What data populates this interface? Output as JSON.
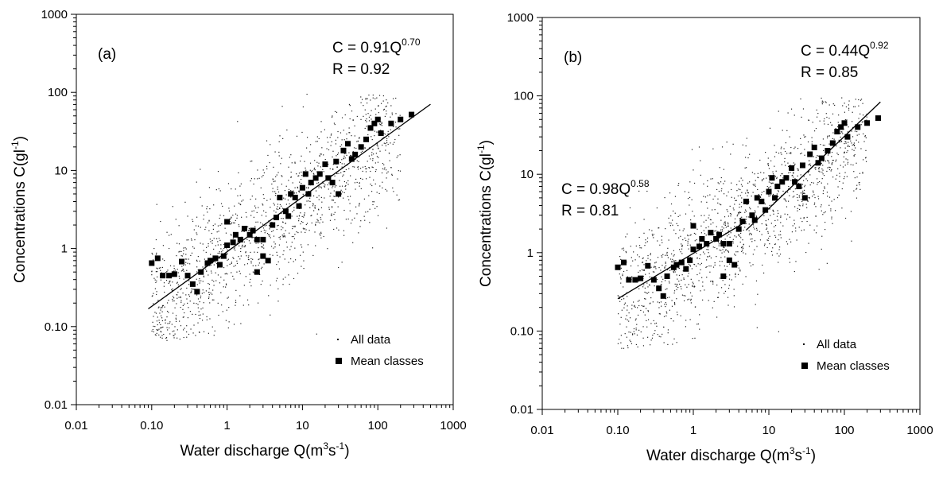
{
  "chart_data": [
    {
      "type": "scatter",
      "panel_label": "(a)",
      "xlabel_main": "Water discharge Q(m",
      "xlabel_sup1": "3",
      "xlabel_mid": "s",
      "xlabel_sup2": "-1",
      "xlabel_end": ")",
      "ylabel_main": "Concentrations C(gl",
      "ylabel_sup": "-1",
      "ylabel_end": ")",
      "xscale": "log",
      "yscale": "log",
      "xlim": [
        0.01,
        1000
      ],
      "ylim": [
        0.01,
        1000
      ],
      "xticks": [
        {
          "v": 0.01,
          "label": "0.01"
        },
        {
          "v": 0.1,
          "label": "0.10"
        },
        {
          "v": 1,
          "label": "1"
        },
        {
          "v": 10,
          "label": "10"
        },
        {
          "v": 100,
          "label": "100"
        },
        {
          "v": 1000,
          "label": "1000"
        }
      ],
      "yticks": [
        {
          "v": 0.01,
          "label": "0.01"
        },
        {
          "v": 0.1,
          "label": "0.10"
        },
        {
          "v": 1,
          "label": "1"
        },
        {
          "v": 10,
          "label": "10"
        },
        {
          "v": 100,
          "label": "100"
        },
        {
          "v": 1000,
          "label": "1000"
        }
      ],
      "legend": {
        "position": "bottom-right",
        "all_data": "All data",
        "mean_classes": "Mean classes"
      },
      "annotations": [
        {
          "line1_base": "C = 0.91Q",
          "line1_exp": "0.70",
          "line2": "R = 0.92",
          "anchor": "top-right"
        }
      ],
      "fits": [
        {
          "a": 0.91,
          "b": 0.7,
          "x_range": [
            0.09,
            500
          ]
        }
      ],
      "mean_classes": [
        [
          0.1,
          0.65
        ],
        [
          0.12,
          0.75
        ],
        [
          0.14,
          0.45
        ],
        [
          0.17,
          0.45
        ],
        [
          0.2,
          0.47
        ],
        [
          0.25,
          0.68
        ],
        [
          0.3,
          0.45
        ],
        [
          0.35,
          0.35
        ],
        [
          0.4,
          0.28
        ],
        [
          0.45,
          0.5
        ],
        [
          0.55,
          0.65
        ],
        [
          0.6,
          0.7
        ],
        [
          0.7,
          0.75
        ],
        [
          0.8,
          0.62
        ],
        [
          0.9,
          0.8
        ],
        [
          1,
          1.1
        ],
        [
          1,
          2.2
        ],
        [
          1.2,
          1.2
        ],
        [
          1.3,
          1.5
        ],
        [
          1.5,
          1.3
        ],
        [
          1.7,
          1.8
        ],
        [
          2,
          1.5
        ],
        [
          2.2,
          1.7
        ],
        [
          2.5,
          1.3
        ],
        [
          2.5,
          0.5
        ],
        [
          3,
          1.3
        ],
        [
          3,
          0.8
        ],
        [
          3.5,
          0.7
        ],
        [
          4,
          2
        ],
        [
          4.5,
          2.5
        ],
        [
          5,
          4.5
        ],
        [
          6,
          3
        ],
        [
          6.5,
          2.6
        ],
        [
          7,
          5
        ],
        [
          8,
          4.5
        ],
        [
          9,
          3.5
        ],
        [
          10,
          6
        ],
        [
          11,
          9
        ],
        [
          12,
          5
        ],
        [
          13,
          7
        ],
        [
          15,
          8
        ],
        [
          17,
          9
        ],
        [
          20,
          12
        ],
        [
          22,
          8
        ],
        [
          25,
          7
        ],
        [
          28,
          13
        ],
        [
          30,
          5
        ],
        [
          35,
          18
        ],
        [
          40,
          22
        ],
        [
          45,
          14
        ],
        [
          50,
          16
        ],
        [
          60,
          20
        ],
        [
          70,
          25
        ],
        [
          80,
          35
        ],
        [
          90,
          40
        ],
        [
          100,
          45
        ],
        [
          110,
          30
        ],
        [
          150,
          40
        ],
        [
          200,
          45
        ],
        [
          280,
          52
        ]
      ],
      "all_data_generator": "log-normal scatter around fit"
    },
    {
      "type": "scatter",
      "panel_label": "(b)",
      "xlabel_main": "Water discharge Q(m",
      "xlabel_sup1": "3",
      "xlabel_mid": "s",
      "xlabel_sup2": "-1",
      "xlabel_end": ")",
      "ylabel_main": "Concentrations C(gl",
      "ylabel_sup": "-1",
      "ylabel_end": ")",
      "xscale": "log",
      "yscale": "log",
      "xlim": [
        0.01,
        1000
      ],
      "ylim": [
        0.01,
        1000
      ],
      "xticks": [
        {
          "v": 0.01,
          "label": "0.01"
        },
        {
          "v": 0.1,
          "label": "0.10"
        },
        {
          "v": 1,
          "label": "1"
        },
        {
          "v": 10,
          "label": "10"
        },
        {
          "v": 100,
          "label": "100"
        },
        {
          "v": 1000,
          "label": "1000"
        }
      ],
      "yticks": [
        {
          "v": 0.01,
          "label": "0.01"
        },
        {
          "v": 0.1,
          "label": "0.10"
        },
        {
          "v": 1,
          "label": "1"
        },
        {
          "v": 10,
          "label": "10"
        },
        {
          "v": 100,
          "label": "100"
        },
        {
          "v": 1000,
          "label": "1000"
        }
      ],
      "legend": {
        "position": "bottom-right",
        "all_data": "All data",
        "mean_classes": "Mean classes"
      },
      "annotations": [
        {
          "line1_base": "C = 0.44Q",
          "line1_exp": "0.92",
          "line2": "R = 0.85",
          "anchor": "top-right"
        },
        {
          "line1_base": "C = 0.98Q",
          "line1_exp": "0.58",
          "line2": "R = 0.81",
          "anchor": "middle-left"
        }
      ],
      "fits": [
        {
          "a": 0.98,
          "b": 0.58,
          "x_range": [
            0.1,
            5
          ]
        },
        {
          "a": 0.44,
          "b": 0.92,
          "x_range": [
            5,
            300
          ]
        }
      ],
      "mean_classes": [
        [
          0.1,
          0.65
        ],
        [
          0.12,
          0.75
        ],
        [
          0.14,
          0.45
        ],
        [
          0.17,
          0.45
        ],
        [
          0.2,
          0.47
        ],
        [
          0.25,
          0.68
        ],
        [
          0.3,
          0.45
        ],
        [
          0.35,
          0.35
        ],
        [
          0.4,
          0.28
        ],
        [
          0.45,
          0.5
        ],
        [
          0.55,
          0.65
        ],
        [
          0.6,
          0.7
        ],
        [
          0.7,
          0.75
        ],
        [
          0.8,
          0.62
        ],
        [
          0.9,
          0.8
        ],
        [
          1,
          1.1
        ],
        [
          1,
          2.2
        ],
        [
          1.2,
          1.2
        ],
        [
          1.3,
          1.5
        ],
        [
          1.5,
          1.3
        ],
        [
          1.7,
          1.8
        ],
        [
          2,
          1.5
        ],
        [
          2.2,
          1.7
        ],
        [
          2.5,
          1.3
        ],
        [
          2.5,
          0.5
        ],
        [
          3,
          1.3
        ],
        [
          3,
          0.8
        ],
        [
          3.5,
          0.7
        ],
        [
          4,
          2
        ],
        [
          4.5,
          2.5
        ],
        [
          5,
          4.5
        ],
        [
          6,
          3
        ],
        [
          6.5,
          2.6
        ],
        [
          7,
          5
        ],
        [
          8,
          4.5
        ],
        [
          9,
          3.5
        ],
        [
          10,
          6
        ],
        [
          11,
          9
        ],
        [
          12,
          5
        ],
        [
          13,
          7
        ],
        [
          15,
          8
        ],
        [
          17,
          9
        ],
        [
          20,
          12
        ],
        [
          22,
          8
        ],
        [
          25,
          7
        ],
        [
          28,
          13
        ],
        [
          30,
          5
        ],
        [
          35,
          18
        ],
        [
          40,
          22
        ],
        [
          45,
          14
        ],
        [
          50,
          16
        ],
        [
          60,
          20
        ],
        [
          70,
          25
        ],
        [
          80,
          35
        ],
        [
          90,
          40
        ],
        [
          100,
          45
        ],
        [
          110,
          30
        ],
        [
          150,
          40
        ],
        [
          200,
          45
        ],
        [
          280,
          52
        ]
      ],
      "all_data_generator": "log-normal scatter around fit"
    }
  ]
}
